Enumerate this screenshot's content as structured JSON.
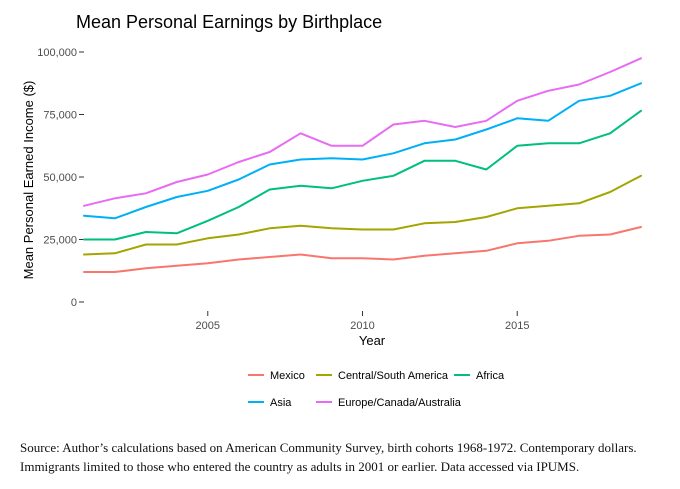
{
  "chart_data": {
    "type": "line",
    "title": "Mean Personal Earnings by Birthplace",
    "xlabel": "Year",
    "ylabel": "Mean Personal Earned Income ($)",
    "xlim": [
      2001,
      2019
    ],
    "ylim": [
      0,
      100000
    ],
    "x_ticks": [
      2005,
      2010,
      2015
    ],
    "x_tick_labels": [
      "2005",
      "2010",
      "2015"
    ],
    "y_ticks": [
      0,
      25000,
      50000,
      75000,
      100000
    ],
    "y_tick_labels": [
      "0",
      "25,000",
      "50,000",
      "75,000",
      "100,000"
    ],
    "grid": false,
    "legend_position": "bottom",
    "x": [
      2001,
      2002,
      2003,
      2004,
      2005,
      2006,
      2007,
      2008,
      2009,
      2010,
      2011,
      2012,
      2013,
      2014,
      2015,
      2016,
      2017,
      2018,
      2019
    ],
    "series": [
      {
        "name": "Mexico",
        "color": "#f8766d",
        "values": [
          12000,
          12000,
          13500,
          14500,
          15500,
          17000,
          18000,
          19000,
          17500,
          17500,
          17000,
          18500,
          19500,
          20500,
          23500,
          24500,
          26500,
          27000,
          30000
        ]
      },
      {
        "name": "Central/South America",
        "color": "#a3a500",
        "values": [
          19000,
          19500,
          23000,
          23000,
          25500,
          27000,
          29500,
          30500,
          29500,
          29000,
          29000,
          31500,
          32000,
          34000,
          37500,
          38500,
          39500,
          44000,
          50500
        ]
      },
      {
        "name": "Africa",
        "color": "#00bf7d",
        "values": [
          25000,
          25000,
          28000,
          27500,
          32500,
          38000,
          45000,
          46500,
          45500,
          48500,
          50500,
          56500,
          56500,
          53000,
          62500,
          63500,
          63500,
          67500,
          76500
        ]
      },
      {
        "name": "Asia",
        "color": "#00b0f6",
        "values": [
          34500,
          33500,
          38000,
          42000,
          44500,
          49000,
          55000,
          57000,
          57500,
          57000,
          59500,
          63500,
          65000,
          69000,
          73500,
          72500,
          80500,
          82500,
          87500
        ]
      },
      {
        "name": "Europe/Canada/Australia",
        "color": "#e76bf3",
        "values": [
          38500,
          41500,
          43500,
          48000,
          51000,
          56000,
          60000,
          67500,
          62500,
          62500,
          71000,
          72500,
          70000,
          72500,
          80500,
          84500,
          87000,
          92000,
          97500
        ]
      }
    ],
    "legend_rows": [
      [
        "Mexico",
        "Central/South America",
        "Africa"
      ],
      [
        "Asia",
        "Europe/Canada/Australia"
      ]
    ]
  },
  "source_note": {
    "line1": "Source: Author’s calculations based on American Community Survey, birth cohorts 1968-1972. Contemporary dollars.",
    "line2": "Immigrants limited to those who entered the country as adults in 2001 or earlier. Data accessed via IPUMS."
  }
}
